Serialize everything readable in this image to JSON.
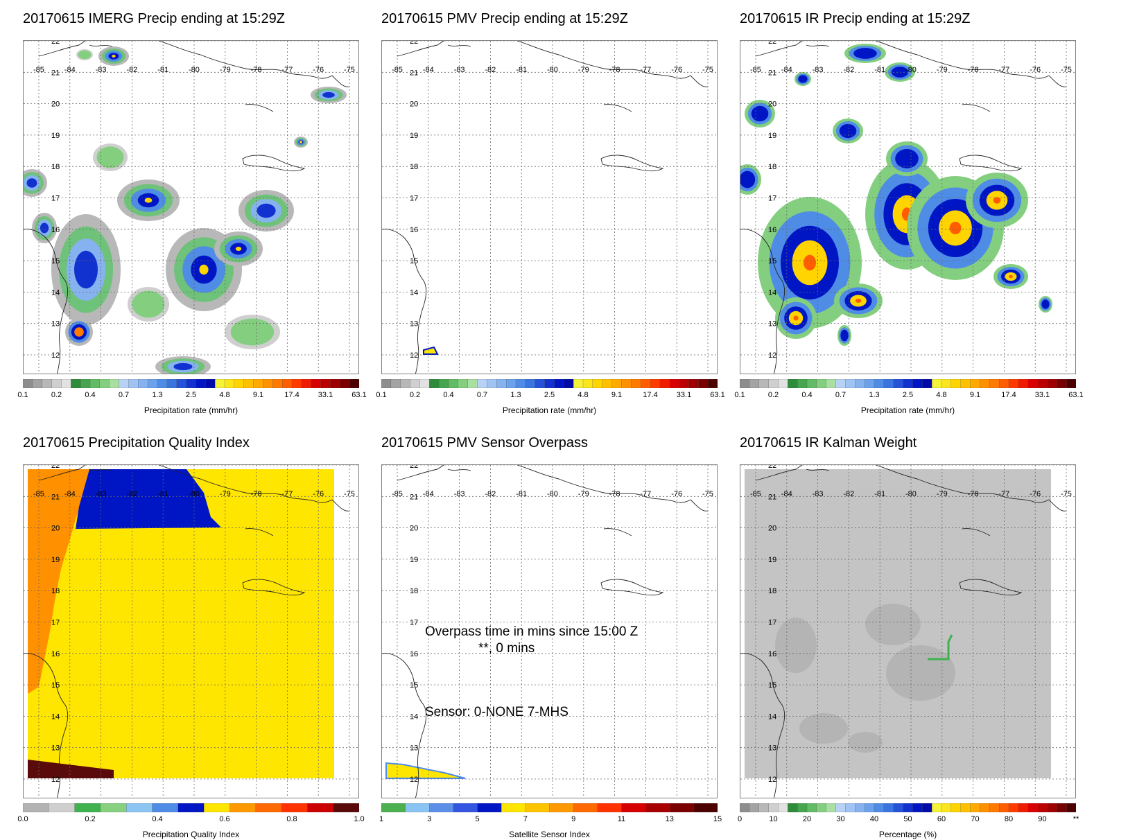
{
  "panels": [
    {
      "title": "20170615 IMERG Precip ending at 15:29Z",
      "field": "precip",
      "colorbar": {
        "colors": [
          "#8e8e8e",
          "#a3a3a3",
          "#b8b8b8",
          "#cfcfcf",
          "#e2e2e2",
          "#2e8b3a",
          "#46a54f",
          "#62bb65",
          "#84cf7f",
          "#a9e0a2",
          "#b8d2f5",
          "#9fc3f2",
          "#86b3ef",
          "#6ba2ec",
          "#4f8ce6",
          "#3a74df",
          "#2452d8",
          "#1232cf",
          "#0016c4",
          "#000aa8",
          "#f5f23a",
          "#fbe51c",
          "#ffd400",
          "#ffc000",
          "#ffaa00",
          "#ff9100",
          "#ff7a00",
          "#ff5d00",
          "#ff3b00",
          "#f01c00",
          "#d80000",
          "#bb0000",
          "#9e0000",
          "#7a0000",
          "#4d0000"
        ],
        "ticks": [
          "0.1",
          "0.2",
          "0.4",
          "0.7",
          "1.3",
          "2.5",
          "4.8",
          "9.1",
          "17.4",
          "33.1",
          "63.1"
        ],
        "label": "Precipitation rate (mm/hr)"
      },
      "overlay": null
    },
    {
      "title": "20170615 PMV Precip ending at 15:29Z",
      "field": "none",
      "colorbar": {
        "colors": [
          "#8e8e8e",
          "#a3a3a3",
          "#b8b8b8",
          "#cfcfcf",
          "#e2e2e2",
          "#2e8b3a",
          "#46a54f",
          "#62bb65",
          "#84cf7f",
          "#a9e0a2",
          "#b8d2f5",
          "#9fc3f2",
          "#86b3ef",
          "#6ba2ec",
          "#4f8ce6",
          "#3a74df",
          "#2452d8",
          "#1232cf",
          "#0016c4",
          "#000aa8",
          "#f5f23a",
          "#fbe51c",
          "#ffd400",
          "#ffc000",
          "#ffaa00",
          "#ff9100",
          "#ff7a00",
          "#ff5d00",
          "#ff3b00",
          "#f01c00",
          "#d80000",
          "#bb0000",
          "#9e0000",
          "#7a0000",
          "#4d0000"
        ],
        "ticks": [
          "0.1",
          "0.2",
          "0.4",
          "0.7",
          "1.3",
          "2.5",
          "4.8",
          "9.1",
          "17.4",
          "33.1",
          "63.1"
        ],
        "label": "Precipitation rate (mm/hr)"
      },
      "overlay": null
    },
    {
      "title": "20170615 IR Precip ending at 15:29Z",
      "field": "ir",
      "colorbar": {
        "colors": [
          "#8e8e8e",
          "#a3a3a3",
          "#b8b8b8",
          "#cfcfcf",
          "#e2e2e2",
          "#2e8b3a",
          "#46a54f",
          "#62bb65",
          "#84cf7f",
          "#a9e0a2",
          "#b8d2f5",
          "#9fc3f2",
          "#86b3ef",
          "#6ba2ec",
          "#4f8ce6",
          "#3a74df",
          "#2452d8",
          "#1232cf",
          "#0016c4",
          "#000aa8",
          "#f5f23a",
          "#fbe51c",
          "#ffd400",
          "#ffc000",
          "#ffaa00",
          "#ff9100",
          "#ff7a00",
          "#ff5d00",
          "#ff3b00",
          "#f01c00",
          "#d80000",
          "#bb0000",
          "#9e0000",
          "#7a0000",
          "#4d0000"
        ],
        "ticks": [
          "0.1",
          "0.2",
          "0.4",
          "0.7",
          "1.3",
          "2.5",
          "4.8",
          "9.1",
          "17.4",
          "33.1",
          "63.1"
        ],
        "label": "Precipitation rate (mm/hr)"
      },
      "overlay": null
    },
    {
      "title": "20170615 Precipitation Quality Index",
      "field": "quality",
      "colorbar": {
        "colors": [
          "#b3b3b3",
          "#cfcfcf",
          "#3fb24f",
          "#87d07f",
          "#8cc4f2",
          "#4f8ce6",
          "#0016c4",
          "#ffe600",
          "#ff9900",
          "#ff6a00",
          "#ff3300",
          "#cc0000",
          "#5a0a0a"
        ],
        "ticks": [
          "0.0",
          "0.2",
          "0.4",
          "0.6",
          "0.8",
          "1.0"
        ],
        "label": "Precipitation Quality Index"
      },
      "overlay": null
    },
    {
      "title": "20170615 PMV Sensor Overpass",
      "field": "overpass",
      "colorbar": {
        "colors": [
          "#4caf50",
          "#8ac4f2",
          "#5b8fe8",
          "#3355e0",
          "#0016c4",
          "#ffe600",
          "#ffc400",
          "#ff9900",
          "#ff6a00",
          "#ff3300",
          "#d60000",
          "#a80000",
          "#7a0000",
          "#4d0000"
        ],
        "ticks": [
          "1",
          "3",
          "5",
          "7",
          "9",
          "11",
          "13",
          "15"
        ],
        "label": "Satellite Sensor Index"
      },
      "overlay": {
        "line1": "Overpass time in mins since 15:00 Z",
        "line2": "**, 0 mins",
        "line3": "Sensor:   0-NONE  7-MHS"
      }
    },
    {
      "title": "20170615 IR Kalman Weight",
      "field": "kalman",
      "colorbar": {
        "colors": [
          "#8e8e8e",
          "#a3a3a3",
          "#b8b8b8",
          "#cfcfcf",
          "#e2e2e2",
          "#2e8b3a",
          "#46a54f",
          "#62bb65",
          "#84cf7f",
          "#a9e0a2",
          "#b8d2f5",
          "#9fc3f2",
          "#86b3ef",
          "#6ba2ec",
          "#4f8ce6",
          "#3a74df",
          "#2452d8",
          "#1232cf",
          "#0016c4",
          "#000aa8",
          "#f5f23a",
          "#fbe51c",
          "#ffd400",
          "#ffc000",
          "#ffaa00",
          "#ff9100",
          "#ff7a00",
          "#ff5d00",
          "#ff3b00",
          "#f01c00",
          "#d80000",
          "#bb0000",
          "#9e0000",
          "#7a0000",
          "#4d0000"
        ],
        "ticks": [
          "0",
          "10",
          "20",
          "30",
          "40",
          "50",
          "60",
          "70",
          "80",
          "90",
          "**"
        ],
        "label": "Percentage (%)"
      },
      "overlay": null
    }
  ],
  "map": {
    "lon_labels": [
      "-85",
      "-84",
      "-83",
      "-82",
      "-81",
      "-80",
      "-79",
      "-78",
      "-77",
      "-76",
      "-75"
    ],
    "lat_labels": [
      "22",
      "21",
      "20",
      "19",
      "18",
      "17",
      "16",
      "15",
      "14",
      "13",
      "12"
    ]
  }
}
